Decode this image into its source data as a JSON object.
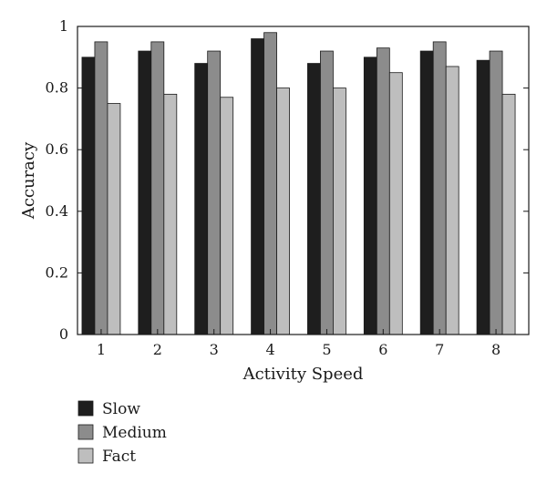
{
  "chart_data": {
    "type": "bar",
    "title": "",
    "xlabel": "Activity Speed",
    "ylabel": "Accuracy",
    "categories": [
      "1",
      "2",
      "3",
      "4",
      "5",
      "6",
      "7",
      "8"
    ],
    "ylim": [
      0,
      1
    ],
    "yticks": [
      "0",
      "0.2",
      "0.4",
      "0.6",
      "0.8",
      "1"
    ],
    "grid": false,
    "legend_position": "bottom-left",
    "series": [
      {
        "name": "Slow",
        "color": "#1e1e1e",
        "values": [
          0.9,
          0.92,
          0.88,
          0.96,
          0.88,
          0.9,
          0.92,
          0.89
        ]
      },
      {
        "name": "Medium",
        "color": "#8c8c8c",
        "values": [
          0.95,
          0.95,
          0.92,
          0.98,
          0.92,
          0.93,
          0.95,
          0.92
        ]
      },
      {
        "name": "Fact",
        "color": "#bebebe",
        "values": [
          0.75,
          0.78,
          0.77,
          0.8,
          0.8,
          0.85,
          0.87,
          0.78
        ]
      }
    ]
  }
}
